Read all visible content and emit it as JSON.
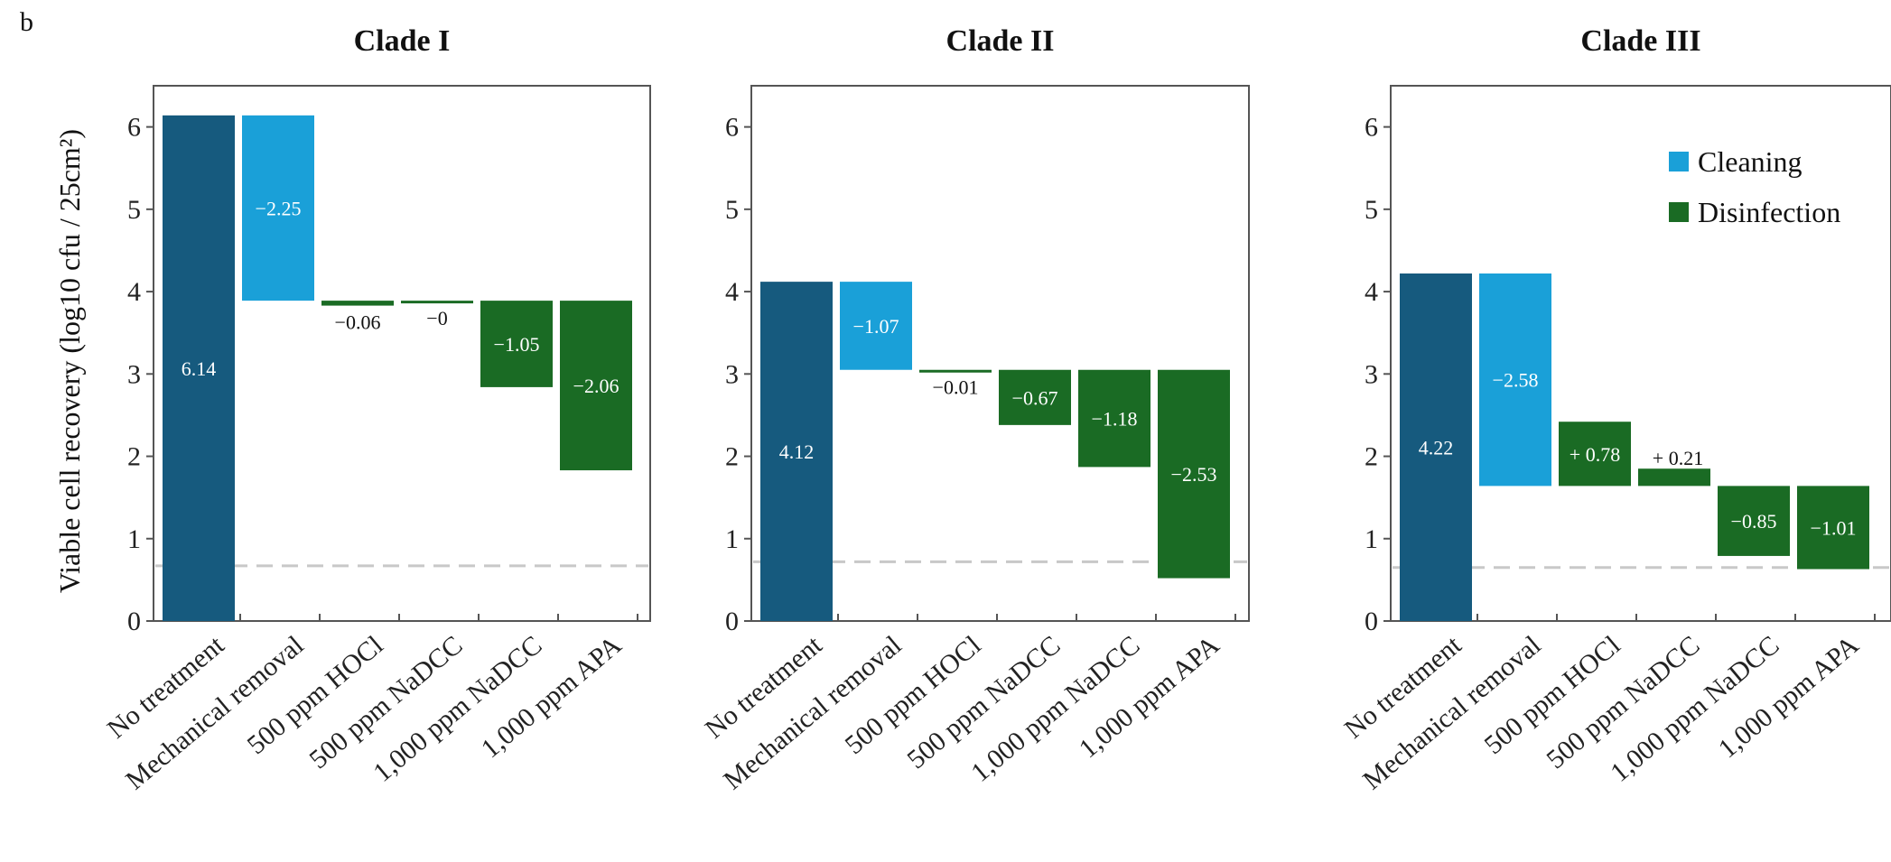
{
  "panel_letter": "b",
  "ylabel": "Viable cell recovery (log10 cfu / 25cm²)",
  "legend": [
    {
      "label": "Cleaning",
      "color": "#1aa0d8"
    },
    {
      "label": "Disinfection",
      "color": "#1a6b24"
    }
  ],
  "colors": {
    "baseline": "#165a7e",
    "cleaning": "#1aa0d8",
    "disinfection": "#1a6b24",
    "threshold_line": "#c8c8c8"
  },
  "chart_data": [
    {
      "type": "bar",
      "title": "Clade I",
      "categories": [
        "No treatment",
        "Mechanical removal",
        "500 ppm HOCl",
        "500 ppm NaDCC",
        "1,000 ppm NaDCC",
        "1,000 ppm APA"
      ],
      "ylim": [
        0,
        6.5
      ],
      "yticks": [
        0,
        1,
        2,
        3,
        4,
        5,
        6
      ],
      "detection_limit": 0.67,
      "bars": [
        {
          "category": "No treatment",
          "kind": "baseline",
          "bottom": 0,
          "top": 6.14,
          "label": "6.14"
        },
        {
          "category": "Mechanical removal",
          "kind": "cleaning",
          "bottom": 3.89,
          "top": 6.14,
          "label": "−2.25"
        },
        {
          "category": "500 ppm HOCl",
          "kind": "disinfection",
          "bottom": 3.83,
          "top": 3.89,
          "label": "−0.06"
        },
        {
          "category": "500 ppm NaDCC",
          "kind": "disinfection",
          "bottom": 3.88,
          "top": 3.89,
          "label": "−0"
        },
        {
          "category": "1,000 ppm NaDCC",
          "kind": "disinfection",
          "bottom": 2.84,
          "top": 3.89,
          "label": "−1.05"
        },
        {
          "category": "1,000 ppm APA",
          "kind": "disinfection",
          "bottom": 1.83,
          "top": 3.89,
          "label": "−2.06"
        }
      ]
    },
    {
      "type": "bar",
      "title": "Clade II",
      "categories": [
        "No treatment",
        "Mechanical removal",
        "500 ppm HOCl",
        "500 ppm NaDCC",
        "1,000 ppm NaDCC",
        "1,000 ppm APA"
      ],
      "ylim": [
        0,
        6.5
      ],
      "yticks": [
        0,
        1,
        2,
        3,
        4,
        5,
        6
      ],
      "detection_limit": 0.72,
      "bars": [
        {
          "category": "No treatment",
          "kind": "baseline",
          "bottom": 0,
          "top": 4.12,
          "label": "4.12"
        },
        {
          "category": "Mechanical removal",
          "kind": "cleaning",
          "bottom": 3.05,
          "top": 4.12,
          "label": "−1.07"
        },
        {
          "category": "500 ppm HOCl",
          "kind": "disinfection",
          "bottom": 3.04,
          "top": 3.05,
          "label": "−0.01"
        },
        {
          "category": "500 ppm NaDCC",
          "kind": "disinfection",
          "bottom": 2.38,
          "top": 3.05,
          "label": "−0.67"
        },
        {
          "category": "1,000 ppm NaDCC",
          "kind": "disinfection",
          "bottom": 1.87,
          "top": 3.05,
          "label": "−1.18"
        },
        {
          "category": "1,000 ppm APA",
          "kind": "disinfection",
          "bottom": 0.52,
          "top": 3.05,
          "label": "−2.53"
        }
      ]
    },
    {
      "type": "bar",
      "title": "Clade III",
      "categories": [
        "No treatment",
        "Mechanical removal",
        "500 ppm HOCl",
        "500 ppm NaDCC",
        "1,000 ppm NaDCC",
        "1,000 ppm APA"
      ],
      "ylim": [
        0,
        6.5
      ],
      "yticks": [
        0,
        1,
        2,
        3,
        4,
        5,
        6
      ],
      "detection_limit": 0.65,
      "legend_position": "top-right",
      "bars": [
        {
          "category": "No treatment",
          "kind": "baseline",
          "bottom": 0,
          "top": 4.22,
          "label": "4.22"
        },
        {
          "category": "Mechanical removal",
          "kind": "cleaning",
          "bottom": 1.64,
          "top": 4.22,
          "label": "−2.58"
        },
        {
          "category": "500 ppm HOCl",
          "kind": "disinfection",
          "bottom": 1.64,
          "top": 2.42,
          "label": "+ 0.78"
        },
        {
          "category": "500 ppm NaDCC",
          "kind": "disinfection",
          "bottom": 1.64,
          "top": 1.85,
          "label": "+ 0.21"
        },
        {
          "category": "1,000 ppm NaDCC",
          "kind": "disinfection",
          "bottom": 0.79,
          "top": 1.64,
          "label": "−0.85"
        },
        {
          "category": "1,000 ppm APA",
          "kind": "disinfection",
          "bottom": 0.63,
          "top": 1.64,
          "label": "−1.01"
        }
      ]
    }
  ]
}
